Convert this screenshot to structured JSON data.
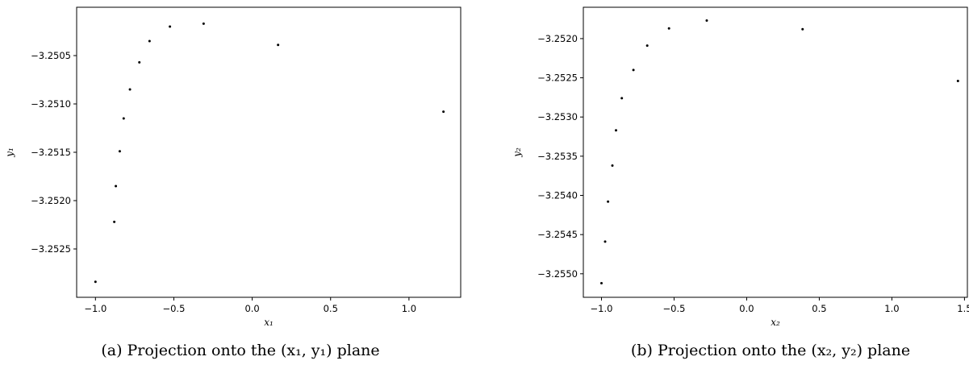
{
  "chart_data": [
    {
      "type": "scatter",
      "xlabel": "x₁",
      "ylabel": "y₁",
      "caption": "(a) Projection onto the (x₁, y₁) plane",
      "xlim": [
        -1.12,
        1.33
      ],
      "ylim": [
        -3.253,
        -3.25
      ],
      "xticks": [
        -1.0,
        -0.5,
        0.0,
        0.5,
        1.0
      ],
      "xtick_labels": [
        "−1.0",
        "−0.5",
        "0.0",
        "0.5",
        "1.0"
      ],
      "yticks": [
        -3.2525,
        -3.252,
        -3.2515,
        -3.251,
        -3.2505
      ],
      "ytick_labels": [
        "−3.2525",
        "−3.2520",
        "−3.2515",
        "−3.2510",
        "−3.2505"
      ],
      "marker_color": "#000000",
      "x": [
        -1.0,
        -0.88,
        -0.87,
        -0.845,
        -0.82,
        -0.78,
        -0.72,
        -0.655,
        -0.525,
        -0.31,
        0.165,
        1.22
      ],
      "y": [
        -3.25284,
        -3.25222,
        -3.25185,
        -3.25149,
        -3.25115,
        -3.25085,
        -3.25057,
        -3.25035,
        -3.2502,
        -3.25017,
        -3.25039,
        -3.25108
      ]
    },
    {
      "type": "scatter",
      "xlabel": "x₂",
      "ylabel": "y₂",
      "caption": "(b) Projection onto the (x₂, y₂) plane",
      "xlim": [
        -1.125,
        1.52
      ],
      "ylim": [
        -3.2553,
        -3.2516
      ],
      "xticks": [
        -1.0,
        -0.5,
        0.0,
        0.5,
        1.0,
        1.5
      ],
      "xtick_labels": [
        "−1.0",
        "−0.5",
        "0.0",
        "0.5",
        "1.0",
        "1.5"
      ],
      "yticks": [
        -3.255,
        -3.2545,
        -3.254,
        -3.2535,
        -3.253,
        -3.2525,
        -3.252
      ],
      "ytick_labels": [
        "−3.2550",
        "−3.2545",
        "−3.2540",
        "−3.2535",
        "−3.2530",
        "−3.2525",
        "−3.2520"
      ],
      "marker_color": "#000000",
      "x": [
        -1.0,
        -0.975,
        -0.955,
        -0.925,
        -0.9,
        -0.86,
        -0.78,
        -0.685,
        -0.535,
        -0.275,
        0.385,
        1.455
      ],
      "y": [
        -3.25512,
        -3.25459,
        -3.25408,
        -3.25362,
        -3.25317,
        -3.25276,
        -3.2524,
        -3.25209,
        -3.25187,
        -3.25177,
        -3.25188,
        -3.25254
      ]
    }
  ]
}
